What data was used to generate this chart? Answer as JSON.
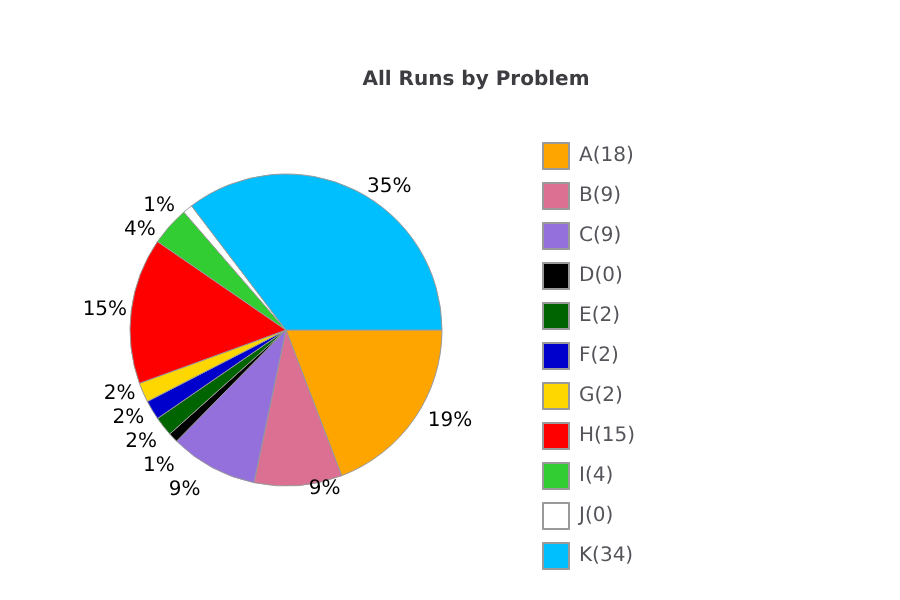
{
  "chart_data": {
    "type": "pie",
    "title": "All Runs by Problem",
    "categories": [
      "A(18)",
      "B(9)",
      "C(9)",
      "D(0)",
      "E(2)",
      "F(2)",
      "G(2)",
      "H(15)",
      "I(4)",
      "J(0)",
      "K(34)"
    ],
    "values": [
      19,
      9,
      9,
      1,
      2,
      2,
      2,
      15,
      4,
      1,
      35
    ],
    "value_labels": [
      "19%",
      "9%",
      "9%",
      "1%",
      "2%",
      "2%",
      "2%",
      "15%",
      "4%",
      "1%",
      "35%"
    ],
    "colors": [
      "#ffa500",
      "#db7093",
      "#9370db",
      "#000000",
      "#006400",
      "#0000cd",
      "#ffd700",
      "#ff0000",
      "#32cd32",
      "#ffffff",
      "#00bfff"
    ],
    "legend": "right"
  }
}
